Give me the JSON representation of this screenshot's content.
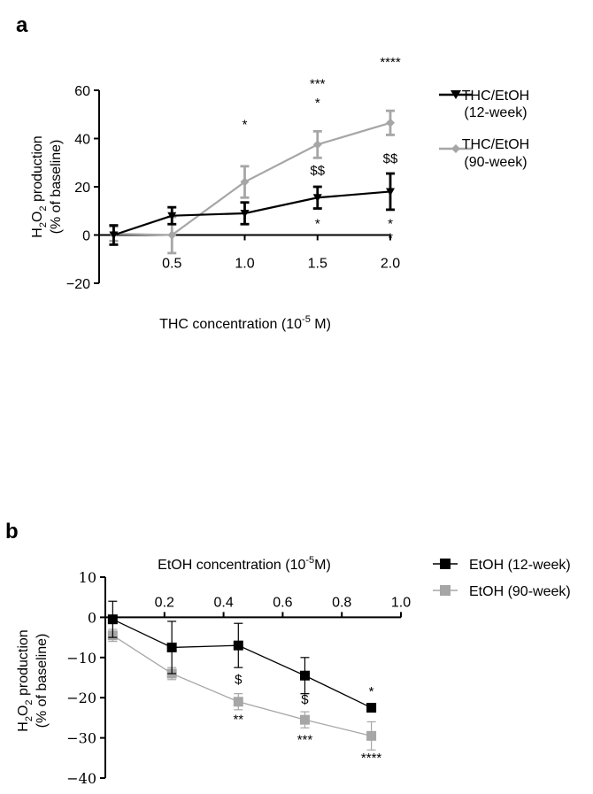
{
  "panel_a": {
    "letter": "a",
    "legend": [
      {
        "line1": "THC/EtOH",
        "line2": "(12-week)"
      },
      {
        "line1": "THC/EtOH",
        "line2": "(90-week)"
      }
    ]
  },
  "panel_b": {
    "letter": "b",
    "legend": [
      {
        "label": "EtOH (12-week)"
      },
      {
        "label": "EtOH (90-week)"
      }
    ]
  },
  "colors": {
    "black": "#000000",
    "grey": "#a6a6a6",
    "annot_grey": "#555555"
  },
  "chart_data": [
    {
      "type": "line",
      "title": "",
      "xlabel": "THC concentration (10^-5 M)",
      "xlabel_base": "THC concentration (10",
      "xlabel_exp": "-5",
      "xlabel_tail": " M)",
      "ylabel_line1_a": "H",
      "ylabel_line1_sub1": "2",
      "ylabel_line1_b": "O",
      "ylabel_line1_sub2": "2",
      "ylabel_line1_c": " production",
      "ylabel_line2": "(% of baseline)",
      "xlim": [
        0,
        2.0
      ],
      "ylim": [
        -20,
        60
      ],
      "x_ticks": [
        0.5,
        1.0,
        1.5,
        2.0
      ],
      "x_tick_labels": [
        "0.5",
        "1.0",
        "1.5",
        "2.0"
      ],
      "y_ticks": [
        -20,
        0,
        20,
        40,
        60
      ],
      "y_tick_labels": [
        "−20",
        "0",
        "20",
        "40",
        "60"
      ],
      "x": [
        0.1,
        0.5,
        1.0,
        1.5,
        2.0
      ],
      "series": [
        {
          "name": "THC/EtOH (12-week)",
          "marker": "triangle-down",
          "color": "#000000",
          "values": [
            0,
            8,
            9,
            15.5,
            18
          ],
          "errors": [
            4,
            3.5,
            4.5,
            4.5,
            7.5
          ]
        },
        {
          "name": "THC/EtOH (90-week)",
          "marker": "diamond",
          "color": "#a6a6a6",
          "values": [
            0.5,
            0,
            22,
            37.5,
            46.5
          ],
          "errors": [
            3,
            7.5,
            6.5,
            5.5,
            5
          ]
        }
      ],
      "annotations": [
        {
          "text": "*",
          "x": 1.0,
          "y": 44
        },
        {
          "text": "***",
          "x": 1.5,
          "y": 61
        },
        {
          "text": "*",
          "x": 1.5,
          "y": 53
        },
        {
          "text": "****",
          "x": 2.0,
          "y": 70
        },
        {
          "text": "$$",
          "x": 1.5,
          "y": 25
        },
        {
          "text": "$$",
          "x": 2.0,
          "y": 30
        },
        {
          "text": "*",
          "x": 1.5,
          "y": 3
        },
        {
          "text": "*",
          "x": 2.0,
          "y": 3
        },
        {
          "text": "*",
          "x": 2.0,
          "y": -3
        }
      ]
    },
    {
      "type": "line",
      "title": "",
      "xlabel": "EtOH concentration (10^-5M)",
      "xlabel_base": "EtOH concentration (10",
      "xlabel_exp": "-5",
      "xlabel_tail": "M)",
      "ylabel_line1_a": "H",
      "ylabel_line1_sub1": "2",
      "ylabel_line1_b": "O",
      "ylabel_line1_sub2": "2",
      "ylabel_line1_c": " production",
      "ylabel_line2": "(% of baseline)",
      "xlim": [
        0,
        1.0
      ],
      "ylim": [
        -40,
        10
      ],
      "x_ticks": [
        0.2,
        0.4,
        0.6,
        0.8,
        1.0
      ],
      "x_tick_labels": [
        "0.2",
        "0.4",
        "0.6",
        "0.8",
        "1.0"
      ],
      "y_ticks": [
        -40,
        -30,
        -20,
        -10,
        0,
        10
      ],
      "y_tick_labels": [
        "−40",
        "−30",
        "−20",
        "−10",
        "0",
        "10"
      ],
      "x": [
        0.025,
        0.225,
        0.45,
        0.675,
        0.9
      ],
      "series": [
        {
          "name": "EtOH (12-week)",
          "marker": "square",
          "color": "#000000",
          "values": [
            -0.5,
            -7.5,
            -7,
            -14.5,
            -22.5
          ],
          "errors": [
            4.5,
            6.5,
            5.5,
            4.5,
            1
          ]
        },
        {
          "name": "EtOH (90-week)",
          "marker": "square",
          "color": "#a6a6a6",
          "values": [
            -4.5,
            -14,
            -21,
            -25.5,
            -29.5
          ],
          "errors": [
            1.5,
            1.5,
            2,
            2,
            3.5
          ]
        }
      ],
      "annotations": [
        {
          "text": "$",
          "x": 0.45,
          "y": -16.5
        },
        {
          "text": "$",
          "x": 0.675,
          "y": -21.5
        },
        {
          "text": "**",
          "x": 0.45,
          "y": -26.5
        },
        {
          "text": "***",
          "x": 0.675,
          "y": -31.5
        },
        {
          "text": "*",
          "x": 0.9,
          "y": -19.5
        },
        {
          "text": "****",
          "x": 0.9,
          "y": -36
        }
      ]
    }
  ]
}
